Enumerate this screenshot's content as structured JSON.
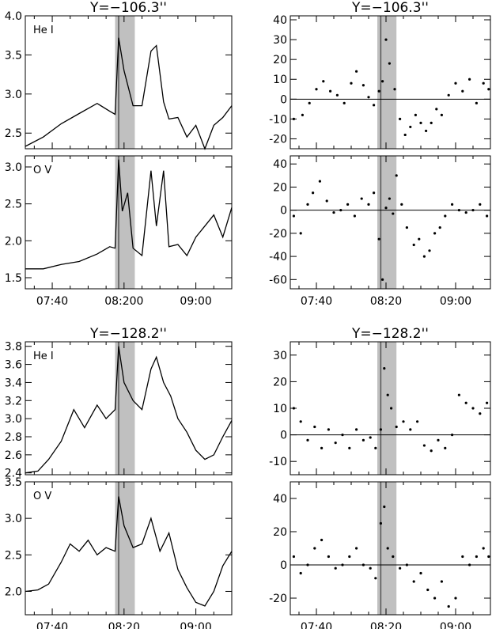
{
  "figure": {
    "titles": [
      "Y=−106.3''",
      "Y=−106.3''",
      "Y=−128.2''",
      "Y=−128.2''"
    ],
    "x_tick_labels": [
      "07:40",
      "08:20",
      "09:00"
    ],
    "lower_left_x_tick_labels": [
      "07:40",
      "08:20",
      "09:00"
    ],
    "upper_left_x_tick_labels": [
      "07:40",
      "08:200",
      "09:00"
    ],
    "shaded_interval": [
      "08:15",
      "08:26"
    ],
    "marker_line_time": "08:17",
    "colors": {
      "line": "#000000",
      "shade": "#c0c0c0",
      "marker": "#555555"
    }
  },
  "chart_data": [
    {
      "type": "line",
      "title": "Y=−106.3''",
      "label": "He I",
      "x_range": [
        "07:25",
        "09:20"
      ],
      "ylim": [
        2.3,
        4.0
      ],
      "yticks": [
        "4.0",
        "3.5",
        "3.0",
        "2.5"
      ],
      "x": [
        "07:25",
        "07:35",
        "07:45",
        "07:55",
        "08:05",
        "08:12",
        "08:15",
        "08:17",
        "08:20",
        "08:25",
        "08:30",
        "08:35",
        "08:38",
        "08:42",
        "08:45",
        "08:50",
        "08:55",
        "09:00",
        "09:05",
        "09:10",
        "09:15",
        "09:20"
      ],
      "values": [
        2.33,
        2.45,
        2.62,
        2.75,
        2.88,
        2.78,
        2.74,
        3.72,
        3.3,
        2.85,
        2.85,
        3.55,
        3.62,
        2.9,
        2.68,
        2.7,
        2.45,
        2.6,
        2.3,
        2.6,
        2.7,
        2.85
      ]
    },
    {
      "type": "line",
      "title": "",
      "label": "O V",
      "x_range": [
        "07:25",
        "09:20"
      ],
      "ylim": [
        1.35,
        3.15
      ],
      "yticks": [
        "3.0",
        "2.5",
        "2.0",
        "1.5"
      ],
      "x": [
        "07:25",
        "07:35",
        "07:45",
        "07:55",
        "08:05",
        "08:12",
        "08:15",
        "08:17",
        "08:19",
        "08:22",
        "08:25",
        "08:30",
        "08:35",
        "08:38",
        "08:42",
        "08:45",
        "08:50",
        "08:55",
        "09:00",
        "09:05",
        "09:10",
        "09:15",
        "09:20"
      ],
      "values": [
        1.62,
        1.62,
        1.68,
        1.72,
        1.82,
        1.92,
        1.9,
        3.1,
        2.4,
        2.65,
        1.9,
        1.8,
        2.95,
        2.2,
        2.95,
        1.92,
        1.95,
        1.8,
        2.05,
        2.2,
        2.35,
        2.05,
        2.45
      ]
    },
    {
      "type": "scatter",
      "title": "Y=−106.3''",
      "x_range": [
        "07:25",
        "09:20"
      ],
      "ylim": [
        -25,
        42
      ],
      "yticks": [
        "40",
        "30",
        "20",
        "10",
        "0",
        "-10",
        "-20"
      ],
      "x": [
        "07:27",
        "07:32",
        "07:36",
        "07:40",
        "07:44",
        "07:48",
        "07:52",
        "07:56",
        "08:00",
        "08:03",
        "08:07",
        "08:10",
        "08:13",
        "08:16",
        "08:18",
        "08:20",
        "08:22",
        "08:25",
        "08:28",
        "08:31",
        "08:34",
        "08:37",
        "08:40",
        "08:43",
        "08:46",
        "08:49",
        "08:52",
        "08:56",
        "09:00",
        "09:04",
        "09:08",
        "09:12",
        "09:16",
        "09:19"
      ],
      "values": [
        -10,
        -8,
        -2,
        5,
        9,
        4,
        2,
        -2,
        8,
        14,
        7,
        1,
        -3,
        4,
        9,
        30,
        18,
        5,
        -10,
        -18,
        -14,
        -8,
        -12,
        -16,
        -12,
        -5,
        -8,
        2,
        8,
        4,
        10,
        -2,
        8,
        5
      ]
    },
    {
      "type": "scatter",
      "title": "",
      "x_range": [
        "07:25",
        "09:20"
      ],
      "ylim": [
        -68,
        47
      ],
      "yticks": [
        "40",
        "20",
        "0",
        "-20",
        "-40",
        "-60"
      ],
      "x": [
        "07:27",
        "07:31",
        "07:35",
        "07:38",
        "07:42",
        "07:46",
        "07:50",
        "07:54",
        "07:58",
        "08:02",
        "08:06",
        "08:10",
        "08:13",
        "08:16",
        "08:18",
        "08:20",
        "08:22",
        "08:24",
        "08:26",
        "08:29",
        "08:32",
        "08:36",
        "08:39",
        "08:42",
        "08:45",
        "08:48",
        "08:51",
        "08:54",
        "08:58",
        "09:02",
        "09:06",
        "09:10",
        "09:14",
        "09:18"
      ],
      "values": [
        -5,
        -20,
        5,
        15,
        25,
        8,
        -2,
        0,
        5,
        -5,
        10,
        5,
        15,
        -25,
        -60,
        2,
        10,
        -3,
        30,
        5,
        -15,
        -30,
        -25,
        -40,
        -35,
        -20,
        -15,
        -5,
        5,
        0,
        -2,
        0,
        5,
        -5
      ]
    },
    {
      "type": "line",
      "title": "Y=−128.2''",
      "label": "He I",
      "x_range": [
        "07:25",
        "09:20"
      ],
      "ylim": [
        2.38,
        3.85
      ],
      "yticks": [
        "3.8",
        "3.6",
        "3.4",
        "3.2",
        "3.0",
        "2.8",
        "2.6",
        "2.4"
      ],
      "x": [
        "07:25",
        "07:32",
        "07:38",
        "07:45",
        "07:52",
        "07:58",
        "08:05",
        "08:10",
        "08:15",
        "08:17",
        "08:20",
        "08:25",
        "08:30",
        "08:35",
        "08:38",
        "08:42",
        "08:46",
        "08:50",
        "08:55",
        "09:00",
        "09:05",
        "09:10",
        "09:15",
        "09:20"
      ],
      "values": [
        2.4,
        2.42,
        2.55,
        2.75,
        3.1,
        2.9,
        3.15,
        3.0,
        3.1,
        3.8,
        3.4,
        3.2,
        3.1,
        3.55,
        3.68,
        3.4,
        3.25,
        3.0,
        2.85,
        2.65,
        2.55,
        2.6,
        2.8,
        2.98
      ]
    },
    {
      "type": "line",
      "title": "",
      "label": "O V",
      "x_range": [
        "07:25",
        "09:20"
      ],
      "ylim": [
        1.68,
        3.5
      ],
      "yticks": [
        "3.5",
        "3.0",
        "2.5",
        "2.0"
      ],
      "x": [
        "07:25",
        "07:32",
        "07:38",
        "07:45",
        "07:50",
        "07:55",
        "08:00",
        "08:05",
        "08:10",
        "08:15",
        "08:17",
        "08:20",
        "08:25",
        "08:30",
        "08:35",
        "08:40",
        "08:45",
        "08:50",
        "08:55",
        "09:00",
        "09:05",
        "09:10",
        "09:15",
        "09:20"
      ],
      "values": [
        2.0,
        2.02,
        2.1,
        2.4,
        2.65,
        2.55,
        2.7,
        2.5,
        2.6,
        2.55,
        3.3,
        2.9,
        2.6,
        2.65,
        3.0,
        2.55,
        2.8,
        2.3,
        2.05,
        1.85,
        1.8,
        2.0,
        2.35,
        2.55
      ]
    },
    {
      "type": "scatter",
      "title": "Y=−128.2''",
      "x_range": [
        "07:25",
        "09:20"
      ],
      "ylim": [
        -15,
        35
      ],
      "yticks": [
        "30",
        "20",
        "10",
        "0",
        "-10"
      ],
      "x": [
        "07:27",
        "07:31",
        "07:35",
        "07:39",
        "07:43",
        "07:47",
        "07:51",
        "07:55",
        "07:59",
        "08:03",
        "08:07",
        "08:11",
        "08:14",
        "08:17",
        "08:19",
        "08:21",
        "08:23",
        "08:26",
        "08:30",
        "08:34",
        "08:38",
        "08:42",
        "08:46",
        "08:50",
        "08:54",
        "08:58",
        "09:02",
        "09:06",
        "09:10",
        "09:14",
        "09:18"
      ],
      "values": [
        10,
        5,
        -2,
        3,
        -5,
        2,
        -3,
        0,
        -5,
        2,
        -2,
        -1,
        -5,
        2,
        25,
        15,
        10,
        3,
        5,
        2,
        5,
        -4,
        -6,
        -2,
        -5,
        0,
        15,
        12,
        10,
        8,
        12
      ]
    },
    {
      "type": "scatter",
      "title": "",
      "x_range": [
        "07:25",
        "09:20"
      ],
      "ylim": [
        -30,
        50
      ],
      "yticks": [
        "40",
        "20",
        "0",
        "-20"
      ],
      "x": [
        "07:27",
        "07:31",
        "07:35",
        "07:39",
        "07:43",
        "07:47",
        "07:51",
        "07:55",
        "07:59",
        "08:03",
        "08:07",
        "08:11",
        "08:14",
        "08:17",
        "08:19",
        "08:21",
        "08:24",
        "08:28",
        "08:32",
        "08:36",
        "08:40",
        "08:44",
        "08:48",
        "08:52",
        "08:56",
        "09:00",
        "09:04",
        "09:08",
        "09:12",
        "09:16",
        "09:19"
      ],
      "values": [
        5,
        -5,
        0,
        10,
        15,
        5,
        -2,
        0,
        5,
        10,
        0,
        -2,
        -8,
        25,
        35,
        10,
        5,
        -2,
        0,
        -10,
        -5,
        -15,
        -20,
        -10,
        -25,
        -20,
        5,
        0,
        5,
        10,
        5
      ]
    }
  ]
}
